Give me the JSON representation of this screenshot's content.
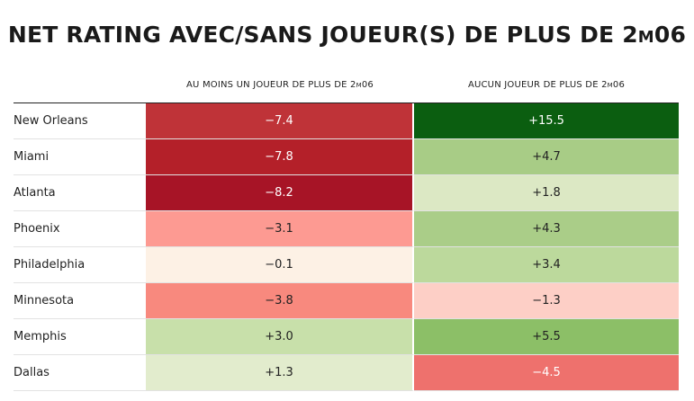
{
  "header": {
    "title": "NET RATING AVEC/SANS JOUEUR(S) DE PLUS DE 2m06"
  },
  "table": {
    "columns": [
      "AU MOINS UN JOUEUR DE PLUS DE 2m06",
      "AUCUN JOUEUR DE PLUS DE 2m06"
    ],
    "rows": [
      [
        "New Orleans",
        "−7.4",
        "+15.5"
      ],
      [
        "Miami",
        "−7.8",
        "+4.7"
      ],
      [
        "Atlanta",
        "−8.2",
        "+1.8"
      ],
      [
        "Phoenix",
        "−3.1",
        "+4.3"
      ],
      [
        "Philadelphia",
        "−0.1",
        "+3.4"
      ],
      [
        "Minnesota",
        "−3.8",
        "−1.3"
      ],
      [
        "Memphis",
        "+3.0",
        "+5.5"
      ],
      [
        "Dallas",
        "+1.3",
        "−4.5"
      ]
    ],
    "colors": [
      [
        "#bf3338",
        "#0b5e10"
      ],
      [
        "#b42029",
        "#a8cc86"
      ],
      [
        "#a71426",
        "#dce8c4"
      ],
      [
        "#fd9a92",
        "#aacd88"
      ],
      [
        "#fdf1e5",
        "#bcd99c"
      ],
      [
        "#f8897e",
        "#fdcfc6"
      ],
      [
        "#c8e0aa",
        "#8cbf67"
      ],
      [
        "#e2eccd",
        "#ee716d"
      ]
    ]
  }
}
